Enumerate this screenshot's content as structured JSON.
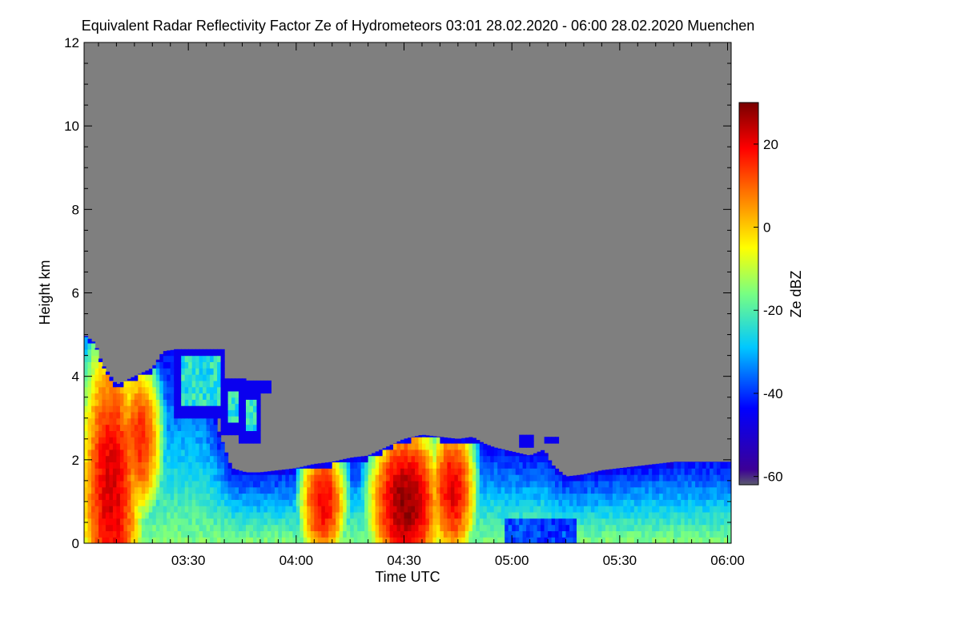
{
  "chart_data": {
    "type": "heatmap",
    "title": "Equivalent Radar Reflectivity Factor Ze of Hydrometeors   03:01 28.02.2020 - 06:00 28.02.2020 Muenchen",
    "xlabel": "Time UTC",
    "ylabel": "Height km",
    "xlim_minutes_utc": [
      181,
      361
    ],
    "x_ticks": [
      {
        "label": "03:30",
        "minutes_utc": 210
      },
      {
        "label": "04:00",
        "minutes_utc": 240
      },
      {
        "label": "04:30",
        "minutes_utc": 270
      },
      {
        "label": "05:00",
        "minutes_utc": 300
      },
      {
        "label": "05:30",
        "minutes_utc": 330
      },
      {
        "label": "06:00",
        "minutes_utc": 360
      }
    ],
    "ylim": [
      0,
      12
    ],
    "y_ticks": [
      0,
      2,
      4,
      6,
      8,
      10,
      12
    ],
    "colorbar": {
      "label": "Ze dBZ",
      "range": [
        -62,
        30
      ],
      "ticks": [
        -60,
        -40,
        -20,
        0,
        20
      ]
    },
    "background_color": "#7f7f7f",
    "echo_top_km": [
      {
        "t": 181,
        "h": 5.0
      },
      {
        "t": 184,
        "h": 4.8
      },
      {
        "t": 186,
        "h": 4.3
      },
      {
        "t": 190,
        "h": 3.8
      },
      {
        "t": 195,
        "h": 4.0
      },
      {
        "t": 200,
        "h": 4.2
      },
      {
        "t": 203,
        "h": 4.6
      },
      {
        "t": 207,
        "h": 4.65
      },
      {
        "t": 212,
        "h": 4.5
      },
      {
        "t": 214,
        "h": 4.3
      },
      {
        "t": 216,
        "h": 3.6
      },
      {
        "t": 218,
        "h": 2.8
      },
      {
        "t": 220,
        "h": 2.3
      },
      {
        "t": 222,
        "h": 1.8
      },
      {
        "t": 226,
        "h": 1.7
      },
      {
        "t": 230,
        "h": 1.7
      },
      {
        "t": 235,
        "h": 1.75
      },
      {
        "t": 240,
        "h": 1.8
      },
      {
        "t": 245,
        "h": 1.9
      },
      {
        "t": 250,
        "h": 1.95
      },
      {
        "t": 255,
        "h": 2.05
      },
      {
        "t": 260,
        "h": 2.1
      },
      {
        "t": 265,
        "h": 2.3
      },
      {
        "t": 270,
        "h": 2.5
      },
      {
        "t": 275,
        "h": 2.6
      },
      {
        "t": 280,
        "h": 2.55
      },
      {
        "t": 285,
        "h": 2.5
      },
      {
        "t": 289,
        "h": 2.55
      },
      {
        "t": 292,
        "h": 2.4
      },
      {
        "t": 295,
        "h": 2.3
      },
      {
        "t": 300,
        "h": 2.2
      },
      {
        "t": 305,
        "h": 2.1
      },
      {
        "t": 309,
        "h": 2.25
      },
      {
        "t": 311,
        "h": 1.9
      },
      {
        "t": 315,
        "h": 1.6
      },
      {
        "t": 320,
        "h": 1.65
      },
      {
        "t": 325,
        "h": 1.75
      },
      {
        "t": 330,
        "h": 1.8
      },
      {
        "t": 335,
        "h": 1.85
      },
      {
        "t": 340,
        "h": 1.9
      },
      {
        "t": 345,
        "h": 1.95
      },
      {
        "t": 350,
        "h": 1.95
      },
      {
        "t": 355,
        "h": 1.95
      },
      {
        "t": 361,
        "h": 1.95
      }
    ],
    "echo_patches": [
      {
        "t0": 206,
        "t1": 220,
        "h0": 3.0,
        "h1": 4.6
      },
      {
        "t0": 219,
        "t1": 226,
        "h0": 2.6,
        "h1": 3.8
      },
      {
        "t0": 224,
        "t1": 230,
        "h0": 2.4,
        "h1": 3.6
      },
      {
        "t0": 224,
        "t1": 233,
        "h0": 3.6,
        "h1": 3.9
      },
      {
        "t0": 302,
        "t1": 306,
        "h0": 2.3,
        "h1": 2.5
      },
      {
        "t0": 309,
        "t1": 313,
        "h0": 2.4,
        "h1": 2.55
      }
    ],
    "cores": [
      {
        "t": 188,
        "h": 1.2,
        "dt": 8,
        "dh": 3.5,
        "peak_dbz": 22
      },
      {
        "t": 196,
        "h": 2.4,
        "dt": 6,
        "dh": 1.8,
        "peak_dbz": 16
      },
      {
        "t": 247,
        "h": 0.9,
        "dt": 6,
        "dh": 1.4,
        "peak_dbz": 20
      },
      {
        "t": 270,
        "h": 0.9,
        "dt": 9,
        "dh": 1.7,
        "peak_dbz": 28
      },
      {
        "t": 283,
        "h": 1.2,
        "dt": 6,
        "dh": 1.6,
        "peak_dbz": 21
      }
    ]
  }
}
